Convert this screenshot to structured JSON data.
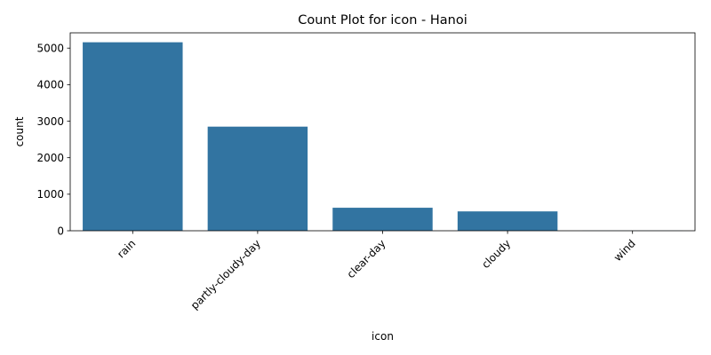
{
  "chart_data": {
    "type": "bar",
    "title": "Count Plot for icon - Hanoi",
    "xlabel": "icon",
    "ylabel": "count",
    "categories": [
      "rain",
      "partly-cloudy-day",
      "clear-day",
      "cloudy",
      "wind"
    ],
    "values": [
      5160,
      2850,
      630,
      530,
      3
    ],
    "ylim": [
      0,
      5418
    ],
    "yticks": [
      0,
      1000,
      2000,
      3000,
      4000,
      5000
    ],
    "grid": false,
    "bar_color": "#3274a1"
  }
}
